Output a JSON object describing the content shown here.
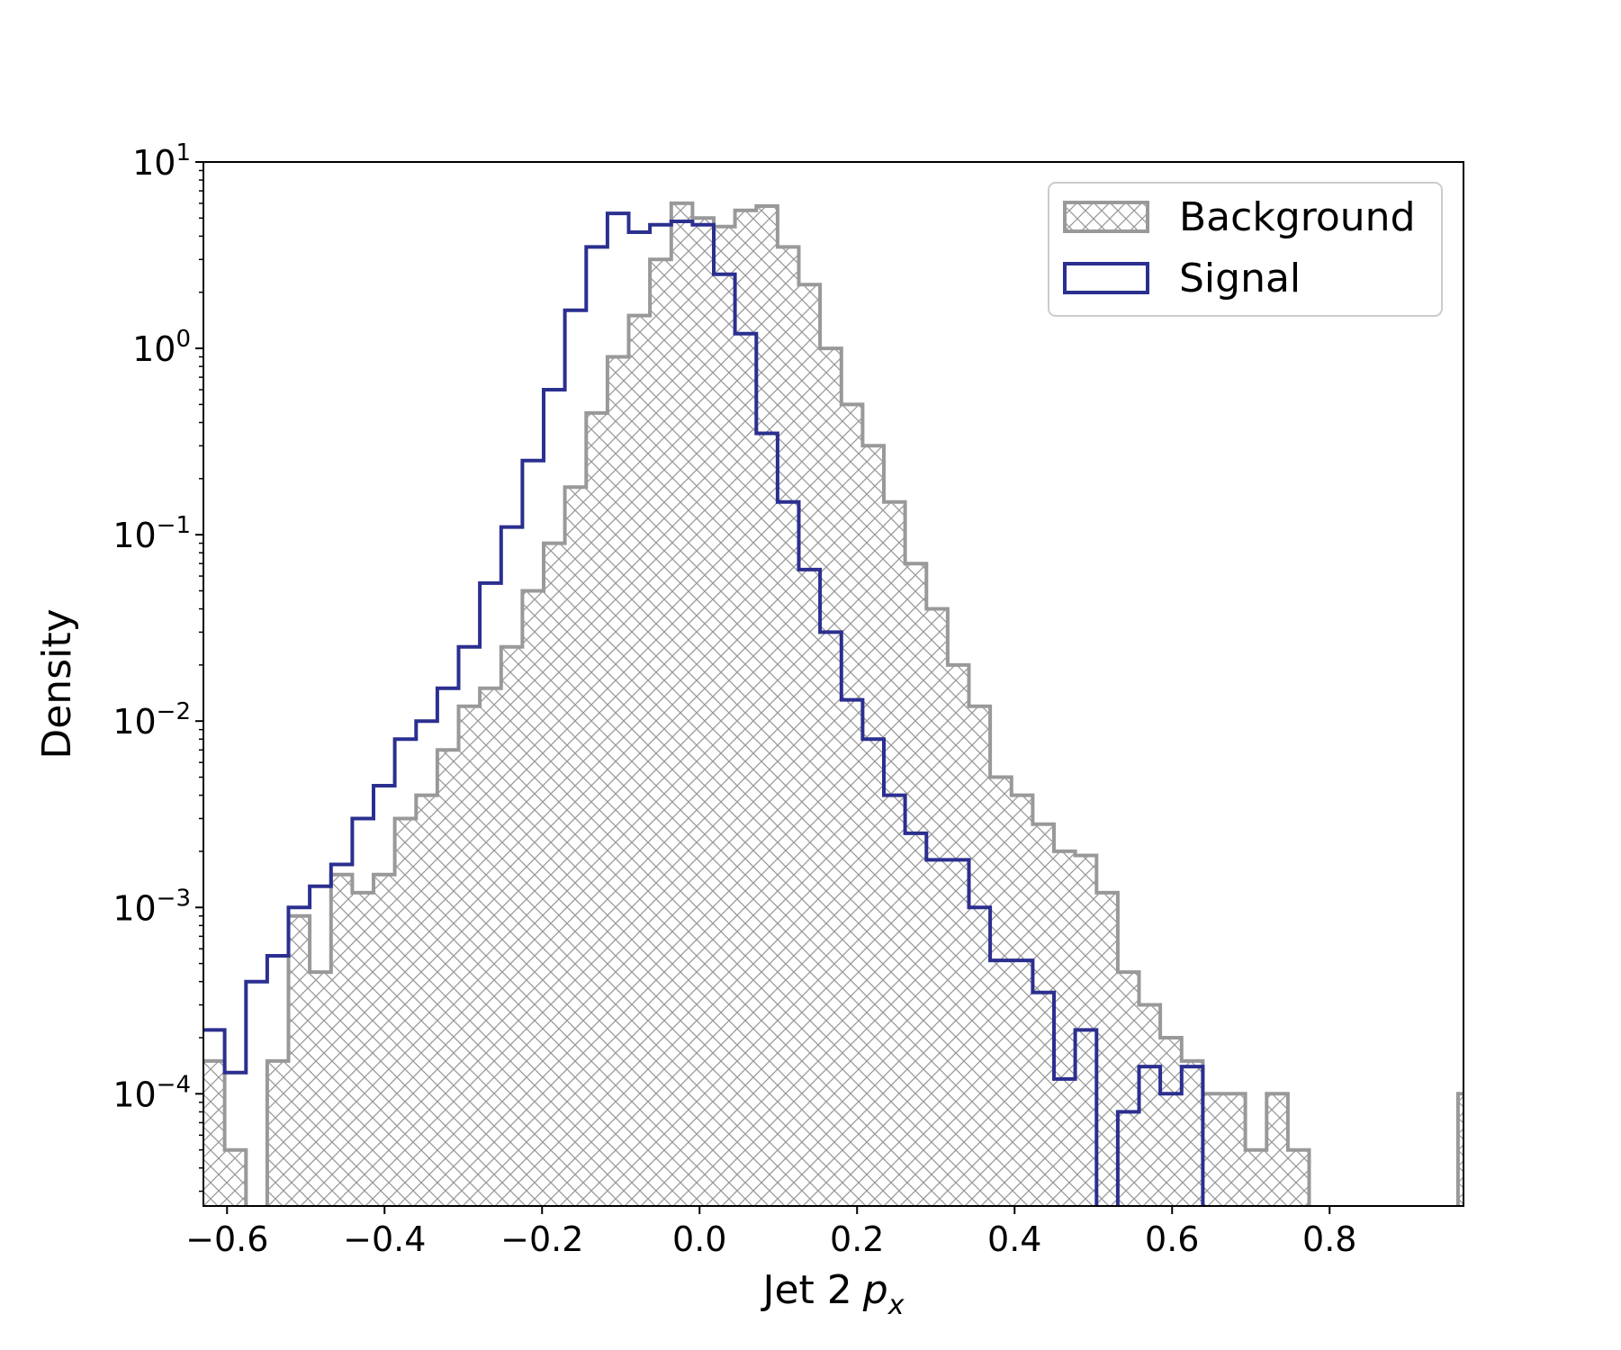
{
  "chart_data": {
    "type": "histogram",
    "y_scale": "log",
    "xlim": [
      -0.63,
      0.97
    ],
    "ylim": [
      2.5e-05,
      10
    ],
    "xlabel": "Jet 2",
    "xlabel_math": "p",
    "xlabel_math_sub": "x",
    "ylabel": "Density",
    "x_ticks": [
      {
        "value": -0.6,
        "label": "−0.6"
      },
      {
        "value": -0.4,
        "label": "−0.4"
      },
      {
        "value": -0.2,
        "label": "−0.2"
      },
      {
        "value": 0.0,
        "label": "0.0"
      },
      {
        "value": 0.2,
        "label": "0.2"
      },
      {
        "value": 0.4,
        "label": "0.4"
      },
      {
        "value": 0.6,
        "label": "0.6"
      },
      {
        "value": 0.8,
        "label": "0.8"
      }
    ],
    "y_ticks": [
      {
        "value": 10,
        "base": "10",
        "exp": "1"
      },
      {
        "value": 1,
        "base": "10",
        "exp": "0"
      },
      {
        "value": 0.1,
        "base": "10",
        "exp": "−1"
      },
      {
        "value": 0.01,
        "base": "10",
        "exp": "−2"
      },
      {
        "value": 0.001,
        "base": "10",
        "exp": "−3"
      },
      {
        "value": 0.0001,
        "base": "10",
        "exp": "−4"
      }
    ],
    "grid": false,
    "legend_position": "top-right",
    "bin_edges_start": -0.63,
    "bin_width": 0.027,
    "series": [
      {
        "name": "Background",
        "style": "hatched",
        "color": "#999999",
        "values": [
          0.00015,
          5e-05,
          0,
          0.00015,
          0.0009,
          0.00045,
          0.0015,
          0.0012,
          0.0015,
          0.003,
          0.004,
          0.007,
          0.012,
          0.015,
          0.025,
          0.05,
          0.09,
          0.18,
          0.45,
          0.9,
          1.5,
          3.0,
          6.0,
          5.0,
          4.5,
          5.5,
          5.8,
          3.5,
          2.2,
          1.0,
          0.5,
          0.3,
          0.15,
          0.07,
          0.04,
          0.02,
          0.012,
          0.005,
          0.004,
          0.0028,
          0.002,
          0.0019,
          0.0012,
          0.00045,
          0.0003,
          0.0002,
          0.00015,
          0.0001,
          0.0001,
          5e-05,
          0.0001,
          5e-05,
          0,
          0,
          0,
          0,
          0,
          0,
          0,
          0.0001
        ]
      },
      {
        "name": "Signal",
        "style": "step",
        "color": "#2b2f8f",
        "values": [
          0.00022,
          0.00013,
          0.0004,
          0.00055,
          0.001,
          0.0013,
          0.0017,
          0.003,
          0.0045,
          0.008,
          0.01,
          0.015,
          0.025,
          0.055,
          0.11,
          0.25,
          0.6,
          1.6,
          3.5,
          5.3,
          4.2,
          4.6,
          4.8,
          4.6,
          2.5,
          1.2,
          0.35,
          0.15,
          0.065,
          0.03,
          0.013,
          0.008,
          0.004,
          0.0025,
          0.0018,
          0.0018,
          0.001,
          0.00052,
          0.00052,
          0.00035,
          0.00012,
          0.00022,
          0,
          8e-05,
          0.00014,
          0.0001,
          0.00014,
          0,
          0,
          0,
          0,
          0,
          0,
          0,
          0,
          0,
          0,
          0,
          0,
          0
        ]
      }
    ]
  }
}
